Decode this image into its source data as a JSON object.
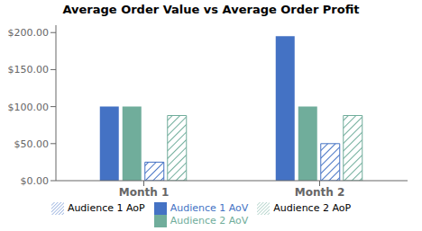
{
  "chart_data": {
    "type": "bar",
    "title": "Average Order Value vs Average Order Profit",
    "categories": [
      "Month 1",
      "Month 2"
    ],
    "series": [
      {
        "name": "Audience 1 AoV",
        "color": "#4472C4",
        "values": [
          100,
          195
        ]
      },
      {
        "name": "Audience 2 AoV",
        "color": "#70AD9B",
        "values": [
          100,
          100
        ]
      },
      {
        "name": "Audience 1 AoP",
        "color": "#4472C4",
        "values": [
          25,
          50
        ]
      },
      {
        "name": "Audience 2 AoP",
        "color": "#70AD9B",
        "values": [
          88,
          88
        ]
      }
    ],
    "ylim": [
      0,
      210
    ],
    "yticks": [
      {
        "value": 0,
        "label": "$0.00"
      },
      {
        "value": 50,
        "label": "$50.00"
      },
      {
        "value": 100,
        "label": "$100.00"
      },
      {
        "value": 150,
        "label": "$150.00"
      },
      {
        "value": 200,
        "label": "$200.00"
      }
    ],
    "grid": false,
    "legend": "bottom"
  }
}
